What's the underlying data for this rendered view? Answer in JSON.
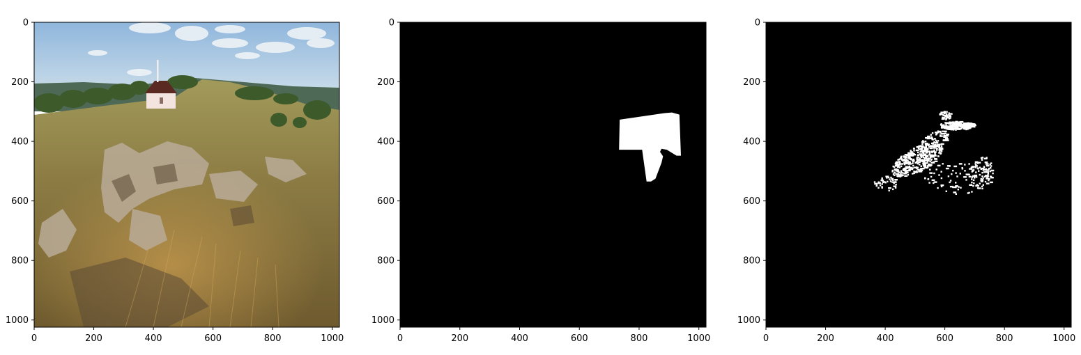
{
  "chart_data": [
    {
      "type": "image",
      "title": "",
      "xlabel": "",
      "ylabel": "",
      "xlim": [
        0,
        1024
      ],
      "ylim": [
        1024,
        0
      ],
      "xticks": [
        "0",
        "200",
        "400",
        "600",
        "800",
        "1000"
      ],
      "yticks": [
        "0",
        "200",
        "400",
        "600",
        "800",
        "1000"
      ],
      "content": "photo-rocky-hillside-chapel",
      "colors": {
        "sky": "#9fc3e3",
        "grass": "#8f8248",
        "rock": "#b8a894",
        "chapel_wall": "#f3e4e0",
        "chapel_roof": "#5a2a22"
      }
    },
    {
      "type": "image",
      "title": "",
      "xlabel": "",
      "ylabel": "",
      "xlim": [
        0,
        1024
      ],
      "ylim": [
        1024,
        0
      ],
      "xticks": [
        "0",
        "200",
        "400",
        "600",
        "800",
        "1000"
      ],
      "yticks": [
        "0",
        "200",
        "400",
        "600",
        "800",
        "1000"
      ],
      "content": "binary-mask-ground-truth",
      "background": "#000000",
      "foreground": "#ffffff",
      "polygon": [
        [
          735,
          327
        ],
        [
          885,
          305
        ],
        [
          910,
          303
        ],
        [
          935,
          310
        ],
        [
          940,
          448
        ],
        [
          925,
          448
        ],
        [
          893,
          428
        ],
        [
          875,
          425
        ],
        [
          870,
          435
        ],
        [
          880,
          450
        ],
        [
          875,
          472
        ],
        [
          855,
          525
        ],
        [
          840,
          535
        ],
        [
          825,
          535
        ],
        [
          810,
          428
        ],
        [
          733,
          428
        ]
      ]
    },
    {
      "type": "image",
      "title": "",
      "xlabel": "",
      "ylabel": "",
      "xlim": [
        0,
        1024
      ],
      "ylim": [
        1024,
        0
      ],
      "xticks": [
        "0",
        "200",
        "400",
        "600",
        "800",
        "1000"
      ],
      "yticks": [
        "0",
        "200",
        "400",
        "600",
        "800",
        "1000"
      ],
      "content": "binary-mask-prediction-scattered",
      "background": "#000000",
      "foreground": "#ffffff"
    }
  ]
}
